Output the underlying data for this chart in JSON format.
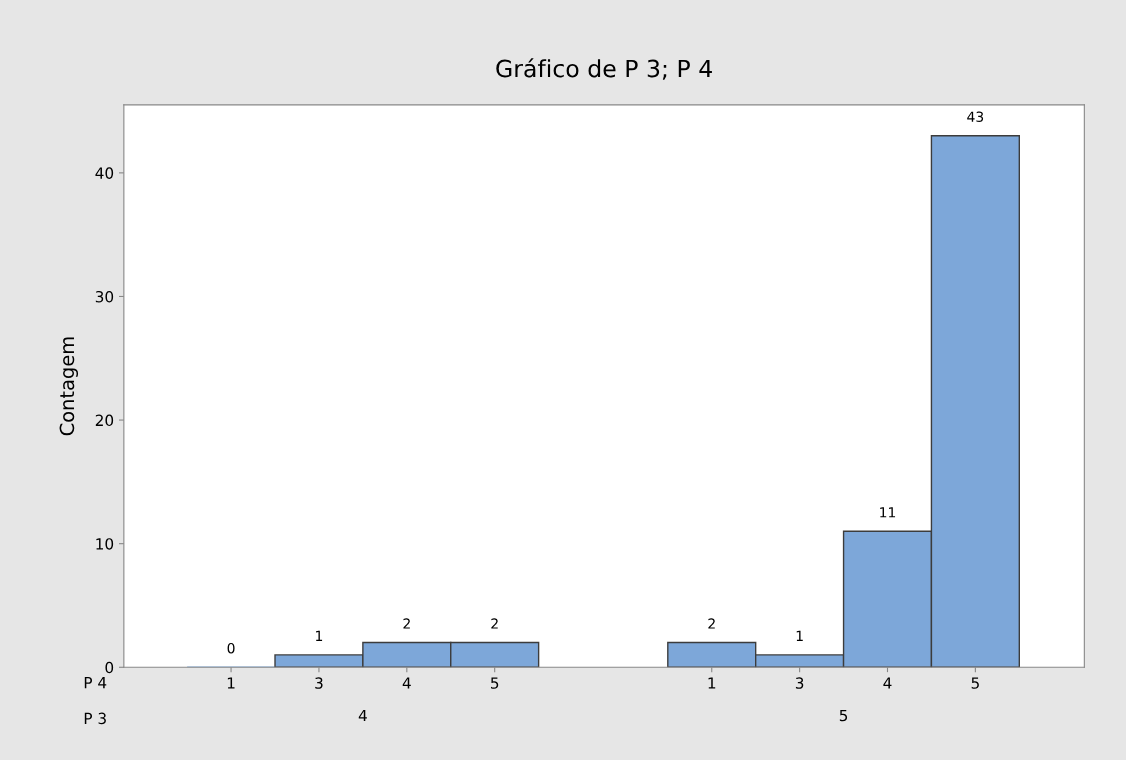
{
  "chart_data": {
    "type": "bar",
    "title": "Gráfico de P 3; P 4",
    "ylabel": "Contagem",
    "categories": [
      "1",
      "3",
      "4",
      "5",
      "1",
      "3",
      "4",
      "5"
    ],
    "values": [
      0,
      1,
      2,
      2,
      2,
      1,
      11,
      43
    ],
    "color": "#7da7d9",
    "data_labels": true,
    "ylim": [
      0,
      45.5
    ],
    "yticks": [
      0,
      10,
      20,
      30,
      40
    ],
    "grid": false,
    "legend": false,
    "annotations": [
      "P 4",
      "P 3",
      "4",
      "5"
    ]
  }
}
